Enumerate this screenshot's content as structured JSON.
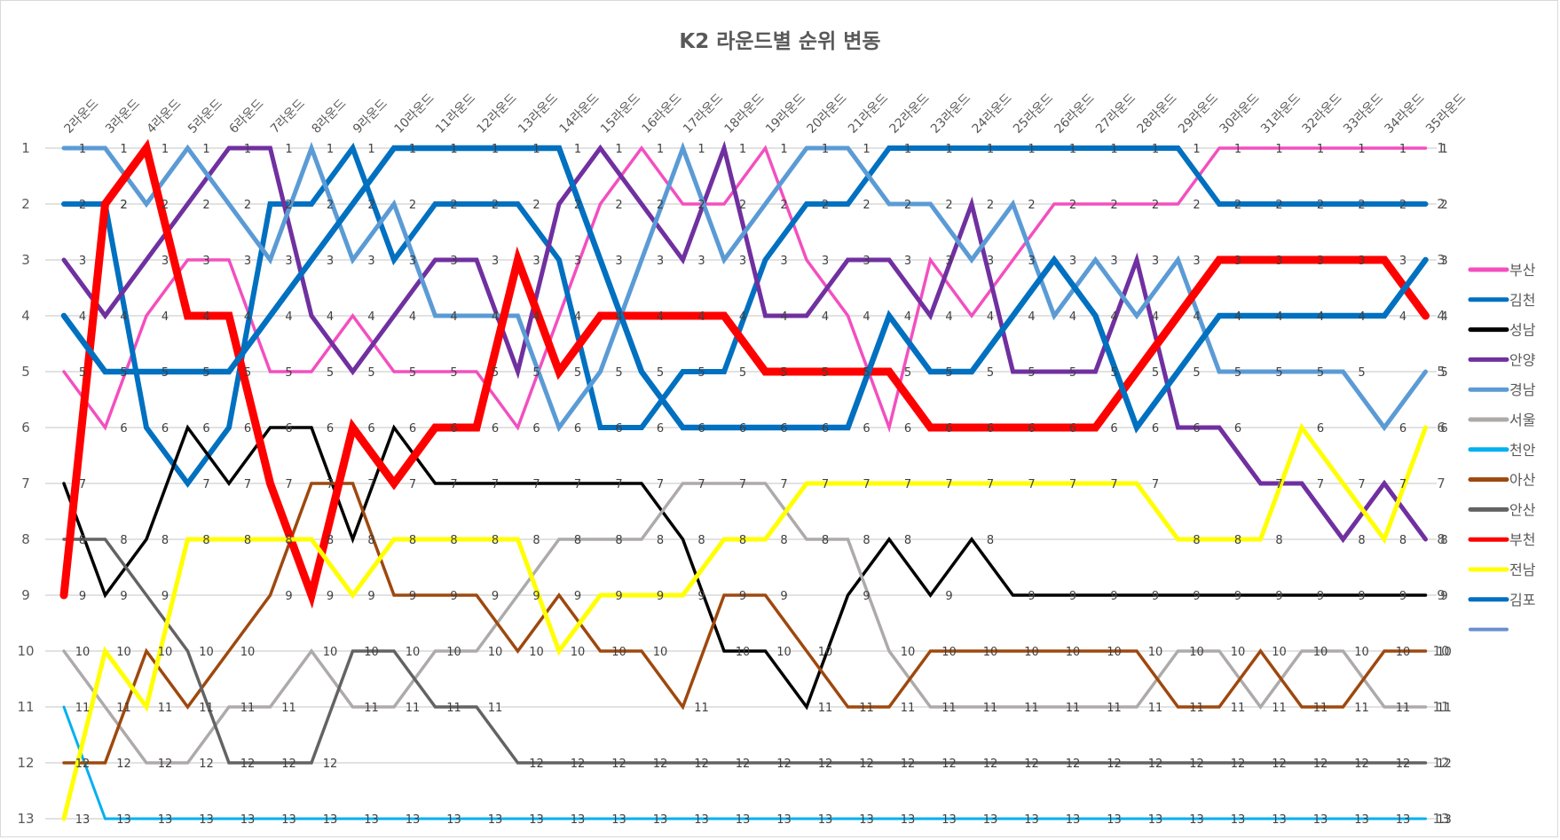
{
  "chart_data": {
    "type": "line",
    "title": "K2 라운드별 순위 변동",
    "xlabel": "",
    "ylabel": "",
    "ylim": [
      1,
      13
    ],
    "y_inverted": true,
    "y_ticks": [
      1,
      2,
      3,
      4,
      5,
      6,
      7,
      8,
      9,
      10,
      11,
      12,
      13
    ],
    "grid": true,
    "legend_position": "right",
    "data_labels": true,
    "categories": [
      "2라운드",
      "3라운드",
      "4라운드",
      "5라운드",
      "6라운드",
      "7라운드",
      "8라운드",
      "9라운드",
      "10라운드",
      "11라운드",
      "12라운드",
      "13라운드",
      "14라운드",
      "15라운드",
      "16라운드",
      "17라운드",
      "18라운드",
      "19라운드",
      "20라운드",
      "21라운드",
      "22라운드",
      "23라운드",
      "24라운드",
      "25라운드",
      "26라운드",
      "27라운드",
      "28라운드",
      "29라운드",
      "30라운드",
      "31라운드",
      "32라운드",
      "33라운드",
      "34라운드",
      "35라운드"
    ],
    "series": [
      {
        "name": "부산",
        "color": "#F34FBF",
        "width": 3.5,
        "values": [
          5,
          6,
          4,
          3,
          3,
          5,
          5,
          4,
          5,
          5,
          5,
          6,
          4,
          2,
          1,
          2,
          2,
          1,
          3,
          4,
          6,
          3,
          4,
          3,
          2,
          2,
          2,
          2,
          1,
          1,
          1,
          1,
          1,
          1
        ]
      },
      {
        "name": "김천",
        "color": "#0070C0",
        "width": 6,
        "values": [
          2,
          2,
          6,
          7,
          6,
          2,
          2,
          1,
          3,
          2,
          2,
          2,
          3,
          6,
          6,
          5,
          5,
          3,
          2,
          2,
          1,
          1,
          1,
          1,
          1,
          1,
          1,
          1,
          2,
          2,
          2,
          2,
          2,
          2
        ]
      },
      {
        "name": "성남",
        "color": "#000000",
        "width": 3.5,
        "values": [
          7,
          9,
          8,
          6,
          7,
          6,
          6,
          8,
          6,
          7,
          7,
          7,
          7,
          7,
          7,
          8,
          10,
          10,
          11,
          9,
          8,
          9,
          8,
          9,
          9,
          9,
          9,
          9,
          9,
          9,
          9,
          9,
          9,
          9
        ]
      },
      {
        "name": "안양",
        "color": "#7030A0",
        "width": 5,
        "values": [
          3,
          4,
          3,
          2,
          1,
          1,
          4,
          5,
          4,
          3,
          3,
          5,
          2,
          1,
          2,
          3,
          1,
          4,
          4,
          3,
          3,
          4,
          2,
          5,
          5,
          5,
          3,
          6,
          6,
          7,
          7,
          8,
          7,
          8
        ]
      },
      {
        "name": "경남",
        "color": "#5B9BD5",
        "width": 5,
        "values": [
          1,
          1,
          2,
          1,
          2,
          3,
          1,
          3,
          2,
          4,
          4,
          4,
          6,
          5,
          3,
          1,
          3,
          2,
          1,
          1,
          2,
          2,
          3,
          2,
          4,
          3,
          4,
          3,
          5,
          5,
          5,
          5,
          6,
          5
        ]
      },
      {
        "name": "서울",
        "color": "#AEAAAA",
        "width": 3.5,
        "values": [
          10,
          11,
          12,
          12,
          11,
          11,
          10,
          11,
          11,
          10,
          10,
          9,
          8,
          8,
          8,
          7,
          7,
          7,
          8,
          8,
          10,
          11,
          11,
          11,
          11,
          11,
          11,
          10,
          10,
          11,
          10,
          10,
          11,
          11
        ]
      },
      {
        "name": "천안",
        "color": "#00B0F0",
        "width": 3,
        "values": [
          11,
          13,
          13,
          13,
          13,
          13,
          13,
          13,
          13,
          13,
          13,
          13,
          13,
          13,
          13,
          13,
          13,
          13,
          13,
          13,
          13,
          13,
          13,
          13,
          13,
          13,
          13,
          13,
          13,
          13,
          13,
          13,
          13,
          13
        ]
      },
      {
        "name": "아산",
        "color": "#9E480E",
        "width": 3.5,
        "values": [
          12,
          12,
          10,
          11,
          10,
          9,
          7,
          7,
          9,
          9,
          9,
          10,
          9,
          10,
          10,
          11,
          9,
          9,
          10,
          11,
          11,
          10,
          10,
          10,
          10,
          10,
          10,
          11,
          11,
          10,
          11,
          11,
          10,
          10
        ]
      },
      {
        "name": "안산",
        "color": "#636363",
        "width": 3.5,
        "values": [
          8,
          8,
          9,
          10,
          12,
          12,
          12,
          10,
          10,
          11,
          11,
          12,
          12,
          12,
          12,
          12,
          12,
          12,
          12,
          12,
          12,
          12,
          12,
          12,
          12,
          12,
          12,
          12,
          12,
          12,
          12,
          12,
          12,
          12
        ]
      },
      {
        "name": "부천",
        "color": "#FF0000",
        "width": 9,
        "values": [
          9,
          2,
          1,
          4,
          4,
          7,
          9,
          6,
          7,
          6,
          6,
          3,
          5,
          4,
          4,
          4,
          4,
          5,
          5,
          5,
          5,
          6,
          6,
          6,
          6,
          6,
          5,
          4,
          3,
          3,
          3,
          3,
          3,
          4
        ]
      },
      {
        "name": "전남",
        "color": "#FFFF00",
        "width": 5,
        "values": [
          13,
          10,
          11,
          8,
          8,
          8,
          8,
          9,
          8,
          8,
          8,
          8,
          10,
          9,
          9,
          9,
          8,
          8,
          7,
          7,
          7,
          7,
          7,
          7,
          7,
          7,
          7,
          8,
          8,
          8,
          6,
          7,
          8,
          6
        ]
      },
      {
        "name": "김포",
        "color": "#0070C0",
        "width": 6.5,
        "values": [
          4,
          5,
          5,
          5,
          5,
          4,
          3,
          2,
          1,
          1,
          1,
          1,
          1,
          3,
          5,
          6,
          6,
          6,
          6,
          6,
          4,
          5,
          5,
          4,
          3,
          4,
          6,
          5,
          4,
          4,
          4,
          4,
          4,
          3
        ]
      }
    ],
    "legend_extra_entry": {
      "name": "",
      "color": "#6A8FD0"
    }
  }
}
